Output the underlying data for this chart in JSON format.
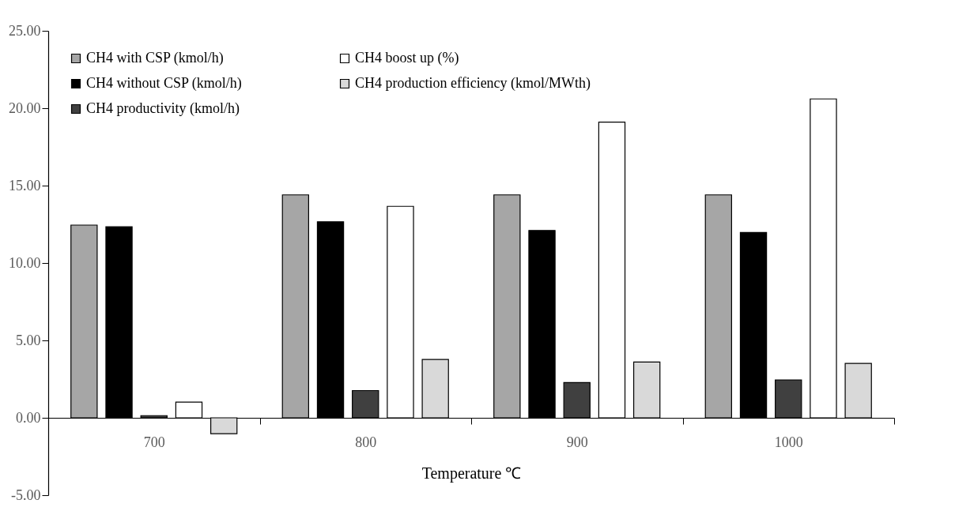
{
  "chart_data": {
    "type": "bar",
    "xlabel": "Temperature ℃",
    "categories": [
      "700",
      "800",
      "900",
      "1000"
    ],
    "series": [
      {
        "name": "CH4 with CSP (kmol/h)",
        "color": "#a6a6a6",
        "values": [
          12.45,
          14.4,
          14.4,
          14.4
        ]
      },
      {
        "name": "CH4 without CSP (kmol/h)",
        "color": "#000000",
        "values": [
          12.34,
          12.66,
          12.1,
          11.97
        ]
      },
      {
        "name": "CH4 productivity (kmol/h)",
        "color": "#404040",
        "values": [
          0.14,
          1.76,
          2.28,
          2.44
        ]
      },
      {
        "name": "CH4 boost up (%)",
        "color": "#ffffff",
        "values": [
          1.01,
          13.66,
          19.1,
          20.6
        ]
      },
      {
        "name": "CH4 production efficiency (kmol/MWth)",
        "color": "#d9d9d9",
        "values": [
          -1.03,
          3.77,
          3.6,
          3.51
        ]
      }
    ],
    "ylim": [
      -5,
      25
    ],
    "yticks": [
      {
        "value": -5,
        "label": "-5.00"
      },
      {
        "value": 0,
        "label": "0.00"
      },
      {
        "value": 5,
        "label": "5.00"
      },
      {
        "value": 10,
        "label": "10.00"
      },
      {
        "value": 15,
        "label": "15.00"
      },
      {
        "value": 20,
        "label": "20.00"
      },
      {
        "value": 25,
        "label": "25.00"
      }
    ],
    "grid": false,
    "legend": "top left"
  }
}
